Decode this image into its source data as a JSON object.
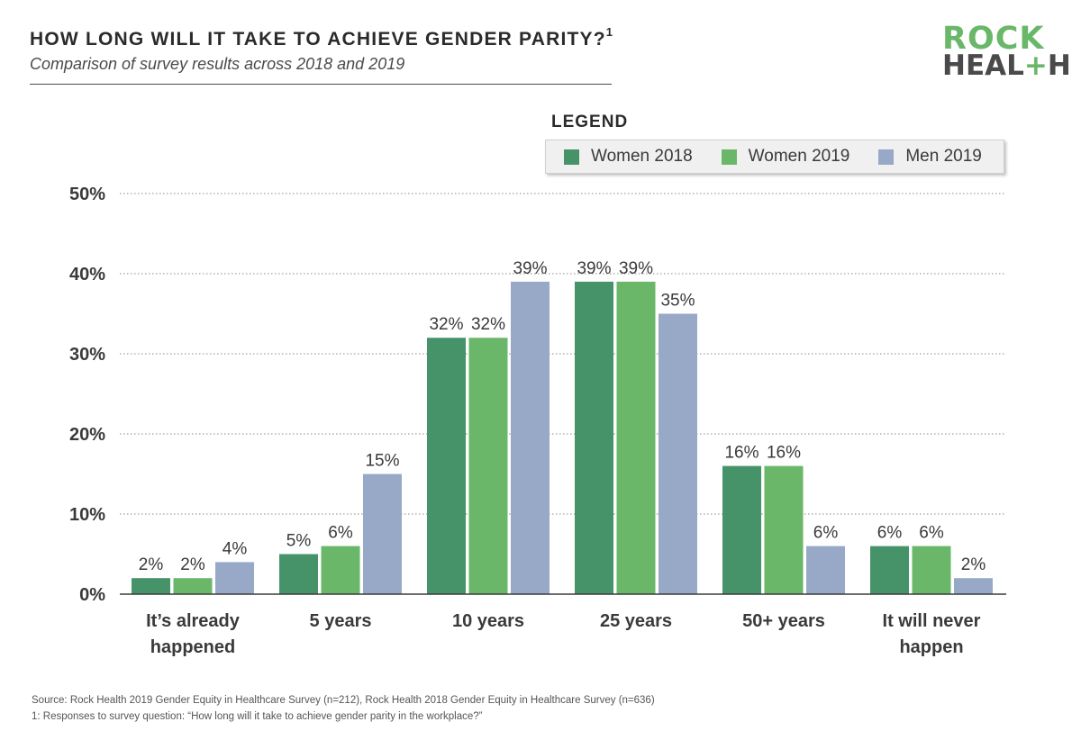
{
  "header": {
    "title": "HOW LONG WILL IT TAKE TO ACHIEVE GENDER PARITY?",
    "title_footnote_marker": "1",
    "subtitle": "Comparison of survey results across 2018 and 2019"
  },
  "logo": {
    "line1": "ROCK",
    "line2_start": "HEAL",
    "line2_plus": "+",
    "line2_end": "H",
    "colors": {
      "green": "#6ab76a",
      "gray": "#4a4a4a"
    }
  },
  "legend": {
    "title": "LEGEND"
  },
  "chart_data": {
    "type": "bar",
    "title": "HOW LONG WILL IT TAKE TO ACHIEVE GENDER PARITY?",
    "subtitle": "Comparison of survey results across 2018 and 2019",
    "categories": [
      [
        "It’s already",
        "happened"
      ],
      [
        "5 years"
      ],
      [
        "10 years"
      ],
      [
        "25 years"
      ],
      [
        "50+ years"
      ],
      [
        "It will never",
        "happen"
      ]
    ],
    "series": [
      {
        "name": "Women 2018",
        "color": "#46936a",
        "values": [
          2,
          5,
          32,
          39,
          16,
          6
        ]
      },
      {
        "name": "Women 2019",
        "color": "#6ab76a",
        "values": [
          2,
          6,
          32,
          39,
          16,
          6
        ]
      },
      {
        "name": "Men 2019",
        "color": "#97a9c7",
        "values": [
          4,
          15,
          39,
          35,
          6,
          2
        ]
      }
    ],
    "y_ticks": [
      "0%",
      "10%",
      "20%",
      "30%",
      "40%",
      "50%"
    ],
    "ylim": [
      0,
      50
    ],
    "xlabel": "",
    "ylabel": "",
    "grid": "dotted horizontal",
    "legend_position": "top-right"
  },
  "footer": {
    "source": "Source: Rock Health 2019 Gender Equity in Healthcare Survey (n=212), Rock Health 2018 Gender Equity in Healthcare Survey (n=636)",
    "note": "1: Responses to survey question: “How long will it take to achieve gender parity in the workplace?”"
  }
}
